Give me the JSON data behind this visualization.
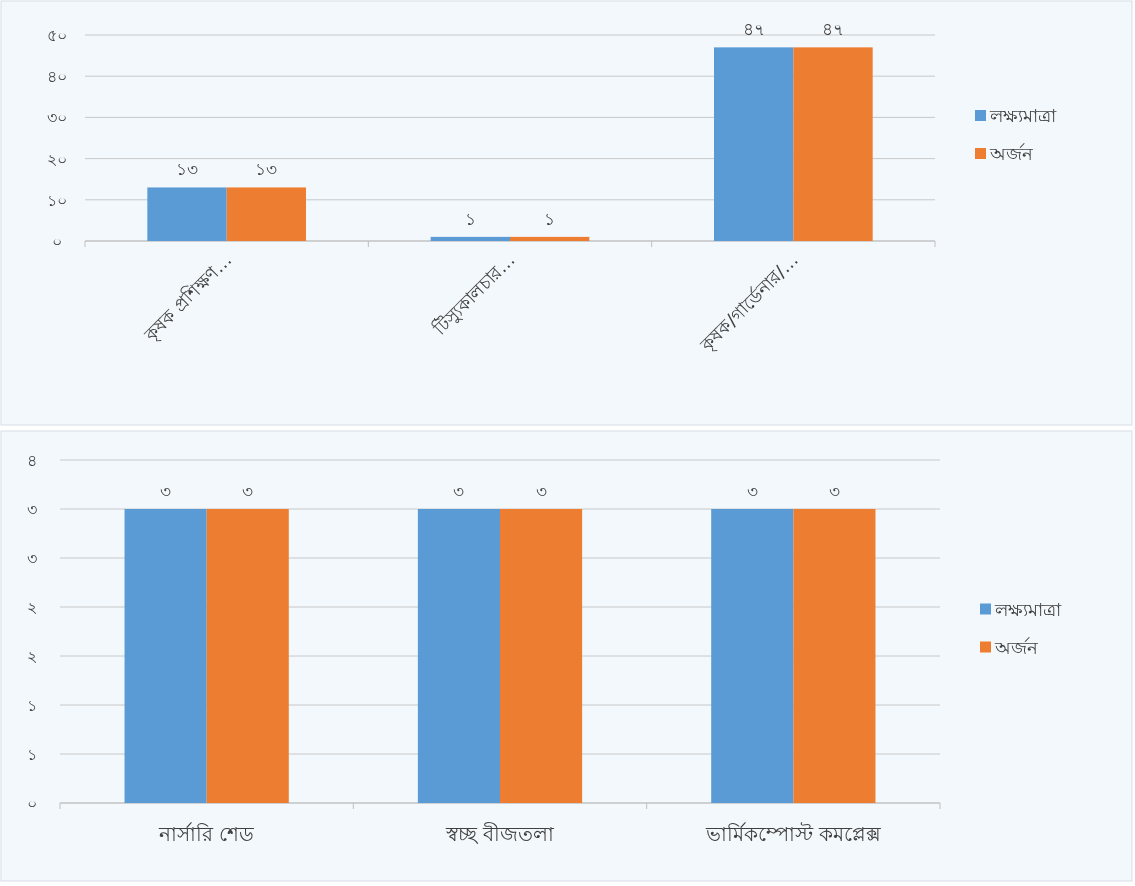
{
  "chart_data": [
    {
      "type": "bar",
      "categories": [
        "কৃষক প্রশিক্ষণ…",
        "টিস্যুকালচার…",
        "কৃষক/গার্ডেনার/…"
      ],
      "series": [
        {
          "name": "লক্ষ্যমাত্রা",
          "color": "#5b9bd5",
          "values": [
            13,
            1,
            47
          ],
          "value_labels": [
            "১৩",
            "১",
            "৪৭"
          ]
        },
        {
          "name": "অর্জন",
          "color": "#ed7d31",
          "values": [
            13,
            1,
            47
          ],
          "value_labels": [
            "১৩",
            "১",
            "৪৭"
          ]
        }
      ],
      "ylim": [
        0,
        50
      ],
      "yticks": [
        {
          "value": 0,
          "label": "০"
        },
        {
          "value": 10,
          "label": "১০"
        },
        {
          "value": 20,
          "label": "২০"
        },
        {
          "value": 30,
          "label": "৩০"
        },
        {
          "value": 40,
          "label": "৪০"
        },
        {
          "value": 50,
          "label": "৫০"
        }
      ],
      "grid": "y",
      "legend": "right"
    },
    {
      "type": "bar",
      "categories": [
        "নার্সারি শেড",
        "স্বচ্ছ বীজতলা",
        "ভার্মিকম্পোস্ট কমপ্লেক্স"
      ],
      "series": [
        {
          "name": "লক্ষ্যমাত্রা",
          "color": "#5b9bd5",
          "values": [
            3,
            3,
            3
          ],
          "value_labels": [
            "৩",
            "৩",
            "৩"
          ]
        },
        {
          "name": "অর্জন",
          "color": "#ed7d31",
          "values": [
            3,
            3,
            3
          ],
          "value_labels": [
            "৩",
            "৩",
            "৩"
          ]
        }
      ],
      "ylim": [
        0,
        3.5
      ],
      "yticks": [
        {
          "value": 0,
          "label": "০"
        },
        {
          "value": 0.5,
          "label": "১"
        },
        {
          "value": 1,
          "label": "১"
        },
        {
          "value": 1.5,
          "label": "২"
        },
        {
          "value": 2,
          "label": "২"
        },
        {
          "value": 2.5,
          "label": "৩"
        },
        {
          "value": 3,
          "label": "৩"
        },
        {
          "value": 3.5,
          "label": "৪"
        }
      ],
      "grid": "y",
      "legend": "right"
    }
  ]
}
